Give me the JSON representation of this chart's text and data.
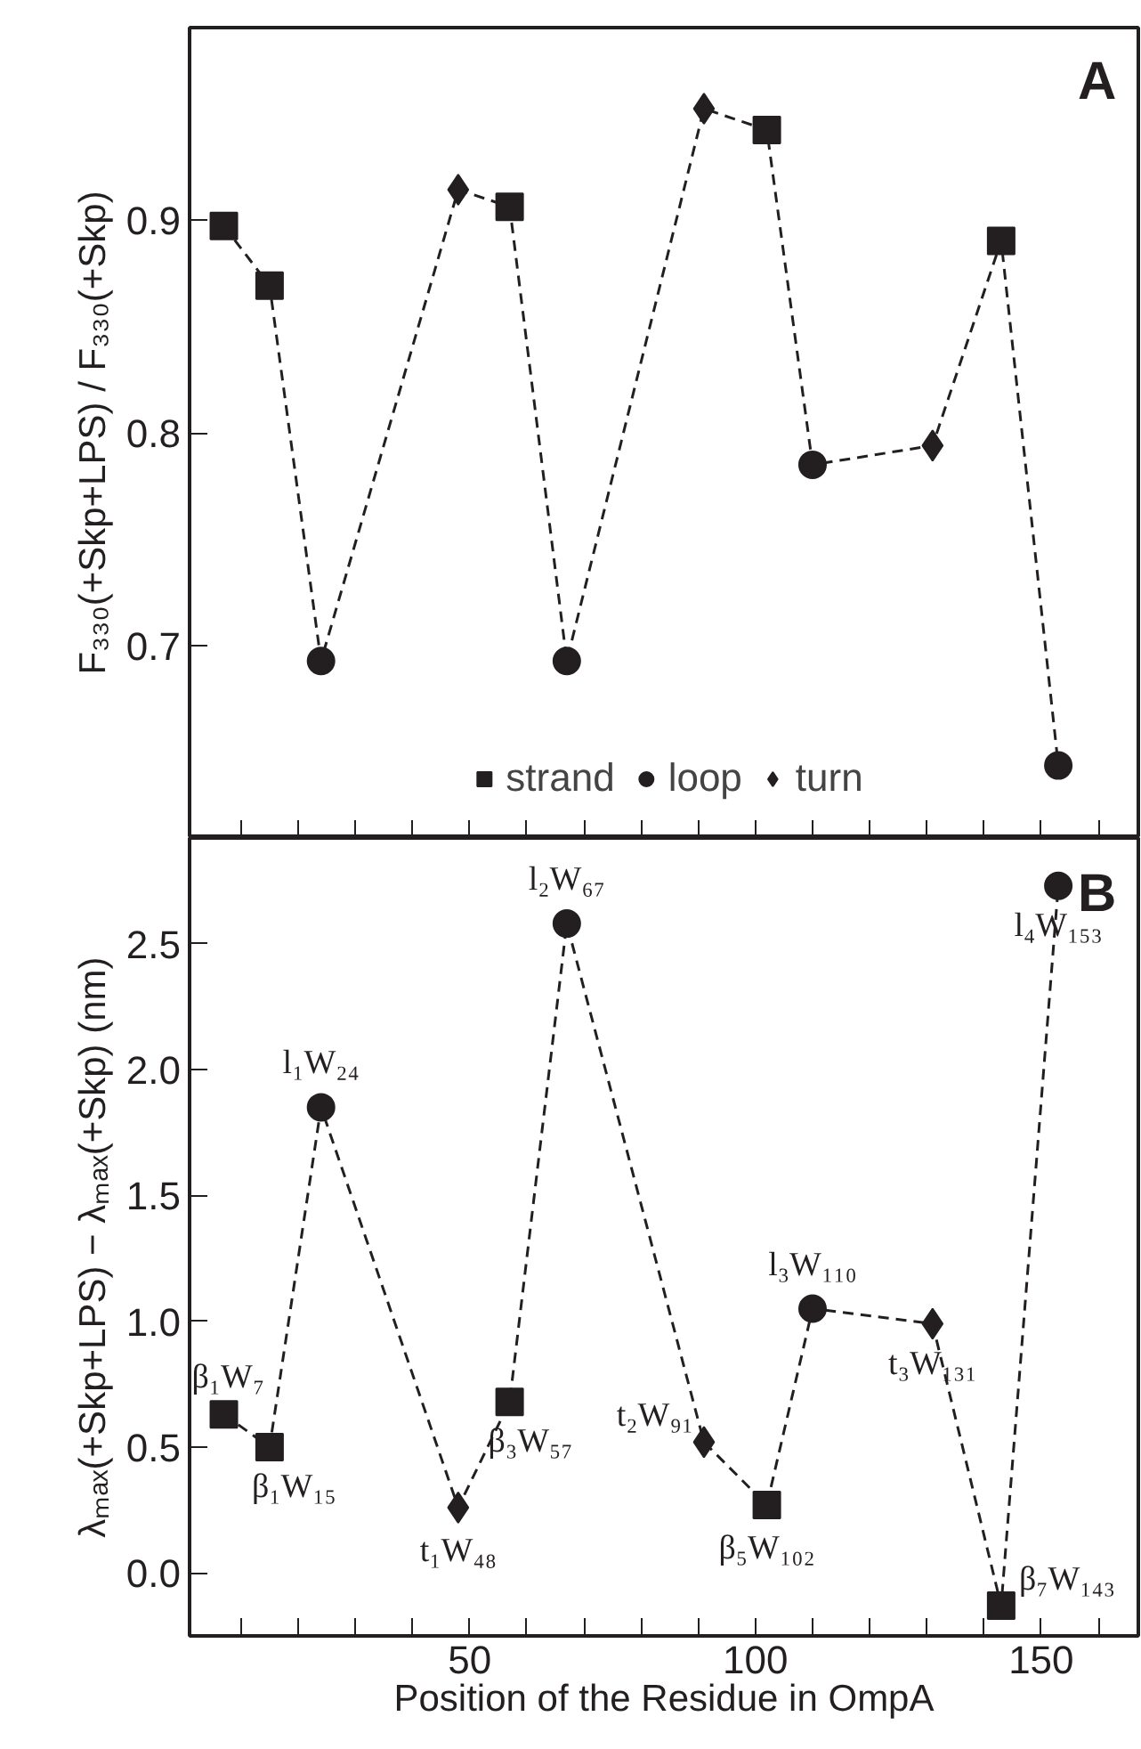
{
  "chart_data": [
    {
      "type": "line",
      "ylabel": "F₃₃₀(+Skp+LPS) / F₃₃₀(+Skp)",
      "annotations": [
        "A"
      ],
      "xlim": [
        1,
        167
      ],
      "xticks": [
        {
          "value": 10,
          "label": null
        },
        {
          "value": 20,
          "label": null
        },
        {
          "value": 30,
          "label": null
        },
        {
          "value": 40,
          "label": null
        },
        50,
        {
          "value": 60,
          "label": null
        },
        {
          "value": 70,
          "label": null
        },
        {
          "value": 80,
          "label": null
        },
        {
          "value": 90,
          "label": null
        },
        100,
        {
          "value": 110,
          "label": null
        },
        {
          "value": 120,
          "label": null
        },
        {
          "value": 130,
          "label": null
        },
        {
          "value": 140,
          "label": null
        },
        150,
        {
          "value": 160,
          "label": null
        }
      ],
      "ylim": [
        0.61,
        0.99
      ],
      "yticks": [
        0.7,
        0.8,
        0.9
      ],
      "tick_labels": "y",
      "grid": false,
      "legend": "bottom",
      "series": [
        {
          "color": "#231f20",
          "marker": "none",
          "line_style": "dashed",
          "x": [
            7,
            15,
            24,
            48,
            57,
            67,
            91,
            102,
            110,
            131,
            143,
            153
          ],
          "values": [
            0.897,
            0.869,
            0.693,
            0.914,
            0.906,
            0.693,
            0.952,
            0.942,
            0.785,
            0.794,
            0.89,
            0.644
          ]
        },
        {
          "type": "scatter",
          "name": "strand",
          "color": "#231f20",
          "marker": "square",
          "x": [
            7,
            15,
            57,
            102,
            143
          ],
          "values": [
            0.897,
            0.869,
            0.906,
            0.942,
            0.89
          ]
        },
        {
          "type": "scatter",
          "name": "loop",
          "color": "#231f20",
          "marker": "circle",
          "x": [
            24,
            67,
            110,
            153
          ],
          "values": [
            0.693,
            0.693,
            0.785,
            0.644
          ]
        },
        {
          "type": "scatter",
          "name": "turn",
          "color": "#231f20",
          "marker": "diamond",
          "x": [
            48,
            91,
            131
          ],
          "values": [
            0.914,
            0.952,
            0.794
          ]
        }
      ]
    },
    {
      "type": "line",
      "xlabel": "Position of the Residue in OmpA",
      "ylabel": "λₘₐₓ(+Skp+LPS) − λₘₐₓ(+Skp)   (nm)",
      "annotations": [
        "B",
        {
          "text": "β₁W₇",
          "x": 7,
          "y": 0.63
        },
        {
          "text": "β₁W₁₅",
          "x": 15,
          "y": 0.5
        },
        {
          "text": "l₁W₂₄",
          "x": 24,
          "y": 1.85
        },
        {
          "text": "t₁W₄₈",
          "x": 48,
          "y": 0.26
        },
        {
          "text": "β₃W₅₇",
          "x": 57,
          "y": 0.68
        },
        {
          "text": "l₂W₆₇",
          "x": 67,
          "y": 2.58
        },
        {
          "text": "t₂W₉₁",
          "x": 91,
          "y": 0.52
        },
        {
          "text": "β₅W₁₀₂",
          "x": 102,
          "y": 0.27
        },
        {
          "text": "l₃W₁₁₀",
          "x": 110,
          "y": 1.05
        },
        {
          "text": "t₃W₁₃₁",
          "x": 131,
          "y": 0.99
        },
        {
          "text": "β₇W₁₄₃",
          "x": 143,
          "y": -0.13
        },
        {
          "text": "l₄W₁₅₃",
          "x": 153,
          "y": 2.73
        }
      ],
      "xlim": [
        1,
        167
      ],
      "xticks": [
        {
          "value": 10,
          "label": null
        },
        {
          "value": 20,
          "label": null
        },
        {
          "value": 30,
          "label": null
        },
        {
          "value": 40,
          "label": null
        },
        50,
        {
          "value": 60,
          "label": null
        },
        {
          "value": 70,
          "label": null
        },
        {
          "value": 80,
          "label": null
        },
        {
          "value": 90,
          "label": null
        },
        100,
        {
          "value": 110,
          "label": null
        },
        {
          "value": 120,
          "label": null
        },
        {
          "value": 130,
          "label": null
        },
        {
          "value": 140,
          "label": null
        },
        150,
        {
          "value": 160,
          "label": null
        }
      ],
      "ylim": [
        -0.25,
        2.92
      ],
      "yticks": [
        {
          "value": 0,
          "label": "0.0"
        },
        0.5,
        {
          "value": 1,
          "label": "1.0"
        },
        1.5,
        {
          "value": 2,
          "label": "2.0"
        },
        2.5
      ],
      "grid": false,
      "series": [
        {
          "color": "#231f20",
          "marker": "none",
          "line_style": "dashed",
          "x": [
            7,
            15,
            24,
            48,
            57,
            67,
            91,
            102,
            110,
            131,
            143,
            153
          ],
          "values": [
            0.63,
            0.5,
            1.85,
            0.26,
            0.68,
            2.58,
            0.52,
            0.27,
            1.05,
            0.99,
            -0.13,
            2.73
          ]
        },
        {
          "type": "scatter",
          "color": "#231f20",
          "marker": "square",
          "x": [
            7,
            15,
            57,
            102,
            143
          ],
          "values": [
            0.63,
            0.5,
            0.68,
            0.27,
            -0.13
          ]
        },
        {
          "type": "scatter",
          "color": "#231f20",
          "marker": "circle",
          "x": [
            24,
            67,
            110,
            153
          ],
          "values": [
            1.85,
            2.58,
            1.05,
            2.73
          ]
        },
        {
          "type": "scatter",
          "color": "#231f20",
          "marker": "diamond",
          "x": [
            48,
            91,
            131
          ],
          "values": [
            0.26,
            0.52,
            0.99
          ]
        }
      ]
    }
  ]
}
